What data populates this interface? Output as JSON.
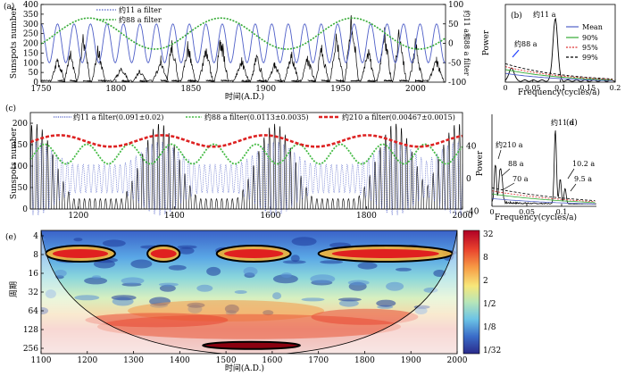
{
  "chart_data": [
    {
      "id": "a",
      "panel_label": "(a)",
      "type": "line",
      "xlabel": "时间(A.D.)",
      "ylabel": "Sunspots number",
      "ylabel_right": "约11 a和88 a filter",
      "xlim": [
        1750,
        2020
      ],
      "ylim": [
        0,
        400
      ],
      "ylim_right": [
        -100,
        100
      ],
      "x_ticks": [
        1750,
        1800,
        1850,
        1900,
        1950,
        2000
      ],
      "y_ticks": [
        0,
        50,
        100,
        150,
        200,
        250,
        300,
        350,
        400
      ],
      "y_ticks_right": [
        -100,
        -50,
        0,
        50,
        100
      ],
      "legend": [
        "约11 a filter",
        "约88 a filter"
      ],
      "series": [
        {
          "name": "Sunspots number",
          "color": "#000000",
          "cycle_period": 11,
          "peak_years": [
            1761,
            1769,
            1778,
            1788,
            1804,
            1816,
            1830,
            1837,
            1848,
            1860,
            1870,
            1884,
            1894,
            1906,
            1917,
            1928,
            1937,
            1947,
            1957,
            1968,
            1979,
            1989,
            2000,
            2014
          ],
          "peak_values": [
            125,
            160,
            230,
            170,
            75,
            60,
            110,
            210,
            190,
            160,
            230,
            110,
            140,
            95,
            150,
            125,
            180,
            250,
            360,
            175,
            260,
            250,
            190,
            115
          ]
        },
        {
          "name": "约11 a filter",
          "color": "#5060c8",
          "style": "solid",
          "period": 11,
          "amplitude": 50,
          "axis": "right"
        },
        {
          "name": "约88 a filter",
          "color": "#33aa33",
          "style": "dotted",
          "period": 88,
          "amplitude": 40,
          "axis": "right"
        }
      ]
    },
    {
      "id": "b",
      "panel_label": "(b)",
      "type": "line",
      "xlabel": "Frequency(cycles/a)",
      "ylabel": "Power",
      "xlim": [
        0,
        0.2
      ],
      "x_ticks": [
        0,
        0.05,
        0.1,
        0.15,
        0.2
      ],
      "x_tick_labels": [
        "0",
        "0.05",
        "0.1",
        "0.15",
        "0.2"
      ],
      "annotations": [
        "约11 a",
        "约88 a"
      ],
      "legend": [
        "Mean",
        "90%",
        "95%",
        "99%"
      ],
      "peaks": [
        {
          "f": 0.0114,
          "power": 1.4
        },
        {
          "f": 0.091,
          "power": 6.5
        }
      ]
    },
    {
      "id": "c",
      "panel_label": "(c)",
      "type": "line",
      "ylabel": "Sunspots number",
      "xlim": [
        1100,
        2000
      ],
      "ylim": [
        0,
        200
      ],
      "ylim_right": [
        -60,
        60
      ],
      "x_ticks": [
        1200,
        1400,
        1600,
        1800,
        2000
      ],
      "y_ticks": [
        0,
        50,
        100,
        150,
        200
      ],
      "y_ticks_right": [
        -40,
        0,
        40
      ],
      "y_tick_labels_right": [
        "-40",
        "0",
        "40"
      ],
      "legend": [
        "约11 a filter(0.091±0.02)",
        "约88 a filter(0.0113±0.0035)",
        "约210 a filter(0.00467±0.0015)"
      ],
      "series": [
        {
          "name": "约11 a filter",
          "color": "#5060c8",
          "style": "dotted",
          "frequency": 0.091
        },
        {
          "name": "约88 a filter",
          "color": "#44bb44",
          "style": "dashed",
          "frequency": 0.0113
        },
        {
          "name": "约210 a filter",
          "color": "#dd2222",
          "style": "dashed",
          "frequency": 0.00467
        }
      ]
    },
    {
      "id": "d",
      "panel_label": "(d)",
      "type": "line",
      "xlabel": "Frequency(cycles/a)",
      "ylabel": "Power",
      "xlim": [
        0,
        0.15
      ],
      "x_ticks": [
        0,
        0.05,
        0.1
      ],
      "x_tick_labels": [
        "0",
        "0.05",
        "0.1"
      ],
      "annotations": [
        "约11 a",
        "约210 a",
        "88 a",
        "70 a",
        "10.2 a",
        "9.5 a"
      ],
      "peaks": [
        {
          "f": 0.0048,
          "power": 2.5
        },
        {
          "f": 0.0114,
          "power": 1.9
        },
        {
          "f": 0.0143,
          "power": 1.4
        },
        {
          "f": 0.091,
          "power": 4.8
        },
        {
          "f": 0.098,
          "power": 1.6
        },
        {
          "f": 0.105,
          "power": 1.0
        }
      ]
    },
    {
      "id": "e",
      "panel_label": "(e)",
      "type": "heatmap",
      "xlabel": "时间(A.D.)",
      "ylabel": "周期",
      "xlim": [
        1100,
        2000
      ],
      "x_ticks": [
        1100,
        1200,
        1300,
        1400,
        1500,
        1600,
        1700,
        1800,
        1900,
        2000
      ],
      "y_ticks": [
        "4",
        "8",
        "16",
        "32",
        "64",
        "128",
        "256"
      ],
      "colorbar_labels": [
        "32",
        "8",
        "2",
        "1/2",
        "1/8",
        "1/32"
      ],
      "significant_bands": [
        {
          "period": 8,
          "from": 1110,
          "to": 1260
        },
        {
          "period": 8,
          "from": 1330,
          "to": 1400
        },
        {
          "period": 8,
          "from": 1480,
          "to": 1640
        },
        {
          "period": 8,
          "from": 1700,
          "to": 1990
        },
        {
          "period": 230,
          "from": 1450,
          "to": 1660
        }
      ]
    }
  ]
}
